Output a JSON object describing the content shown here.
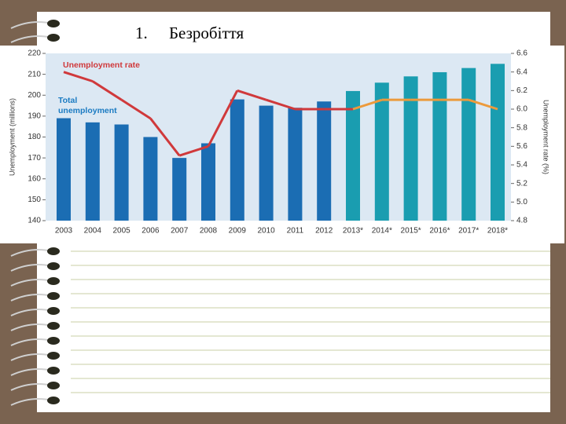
{
  "slide": {
    "number": "1.",
    "title": "Безробіття"
  },
  "chart_data": {
    "type": "bar",
    "categories": [
      "2003",
      "2004",
      "2005",
      "2006",
      "2007",
      "2008",
      "2009",
      "2010",
      "2011",
      "2012",
      "2013*",
      "2014*",
      "2015*",
      "2016*",
      "2017*",
      "2018*"
    ],
    "series": [
      {
        "name": "Total unemployment",
        "type": "bar",
        "values": [
          189,
          187,
          186,
          180,
          170,
          177,
          198,
          195,
          194,
          197,
          202,
          206,
          209,
          211,
          213,
          215
        ],
        "colors": [
          "#1b6db3",
          "#1b6db3",
          "#1b6db3",
          "#1b6db3",
          "#1b6db3",
          "#1b6db3",
          "#1b6db3",
          "#1b6db3",
          "#1b6db3",
          "#1b6db3",
          "#1a9db0",
          "#1a9db0",
          "#1a9db0",
          "#1a9db0",
          "#1a9db0",
          "#1a9db0"
        ],
        "label_color": "#1b7bc2"
      },
      {
        "name": "Unemployment rate",
        "type": "line",
        "axis": "y2",
        "values": [
          6.4,
          6.3,
          6.1,
          5.9,
          5.5,
          5.6,
          6.2,
          6.1,
          6.0,
          6.0,
          6.0,
          6.1,
          6.1,
          6.1,
          6.1,
          6.0
        ],
        "colors": [
          "#d0393b",
          "#d0393b",
          "#d0393b",
          "#d0393b",
          "#d0393b",
          "#d0393b",
          "#d0393b",
          "#d0393b",
          "#d0393b",
          "#d0393b",
          "#d0393b",
          "#ec9a3c",
          "#ec9a3c",
          "#ec9a3c",
          "#ec9a3c",
          "#ec9a3c"
        ],
        "label_color": "#d0393b"
      }
    ],
    "y_label": "Unemployment (millions)",
    "y2_label": "Unemployment rate (%)",
    "ylim": [
      140,
      220
    ],
    "yticks": [
      140,
      150,
      160,
      170,
      180,
      190,
      200,
      210,
      220
    ],
    "y2lim": [
      4.8,
      6.6
    ],
    "y2ticks": [
      4.8,
      {
        "value": 5,
        "label": "5.0"
      },
      5.2,
      5.4,
      5.6,
      5.8,
      {
        "value": 6,
        "label": "6.0"
      },
      6.2,
      6.4,
      6.6
    ],
    "plot_background": "#dce8f3"
  }
}
